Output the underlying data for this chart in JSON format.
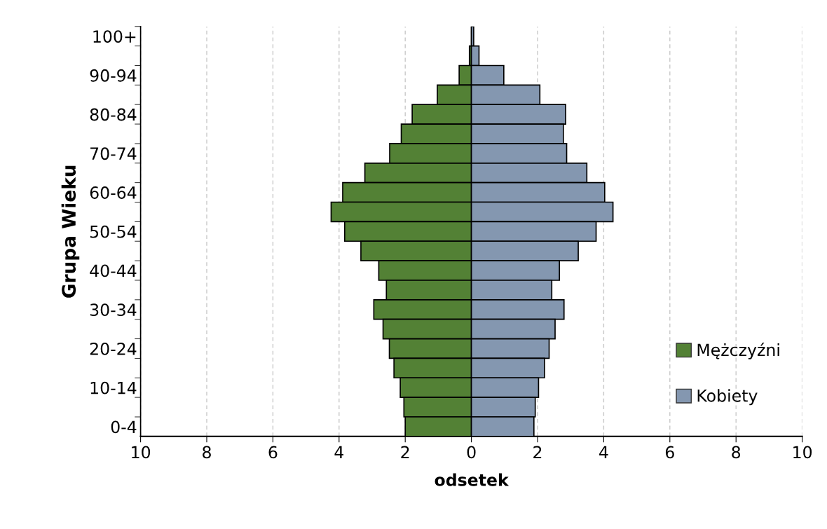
{
  "chart_data": {
    "type": "bar",
    "orientation": "horizontal",
    "stacked": true,
    "xlabel": "odsetek",
    "ylabel": "Grupa Wieku",
    "categories": [
      "100+",
      null,
      "90-94",
      null,
      "80-84",
      null,
      "70-74",
      null,
      "60-64",
      null,
      "50-54",
      null,
      "40-44",
      null,
      "30-34",
      null,
      "20-24",
      null,
      "10-14",
      null,
      "0-4"
    ],
    "series": [
      {
        "name": "Mężczyźni",
        "color": "#538135",
        "values": [
          null,
          -0.06,
          -0.37,
          -1.03,
          -1.79,
          -2.12,
          -2.47,
          -3.22,
          -3.89,
          -4.24,
          -3.83,
          -3.34,
          -2.8,
          -2.57,
          -2.95,
          -2.67,
          -2.48,
          -2.34,
          -2.15,
          -2.04,
          -2.0
        ]
      },
      {
        "name": "Kobiety",
        "color": "#8497b0",
        "values": [
          0.07,
          0.23,
          0.98,
          2.07,
          2.85,
          2.78,
          2.88,
          3.49,
          4.03,
          4.28,
          3.77,
          3.23,
          2.66,
          2.43,
          2.8,
          2.53,
          2.35,
          2.21,
          2.03,
          1.93,
          1.89
        ]
      }
    ],
    "xlim": [
      -10,
      10
    ],
    "xticks": [
      {
        "value": -10,
        "label": "10"
      },
      {
        "value": -8,
        "label": "8"
      },
      {
        "value": -6,
        "label": "6"
      },
      {
        "value": -4,
        "label": "4"
      },
      {
        "value": -2,
        "label": "2"
      },
      0,
      2,
      4,
      6,
      8,
      10
    ],
    "grid": "x",
    "legend": "bottom right"
  }
}
